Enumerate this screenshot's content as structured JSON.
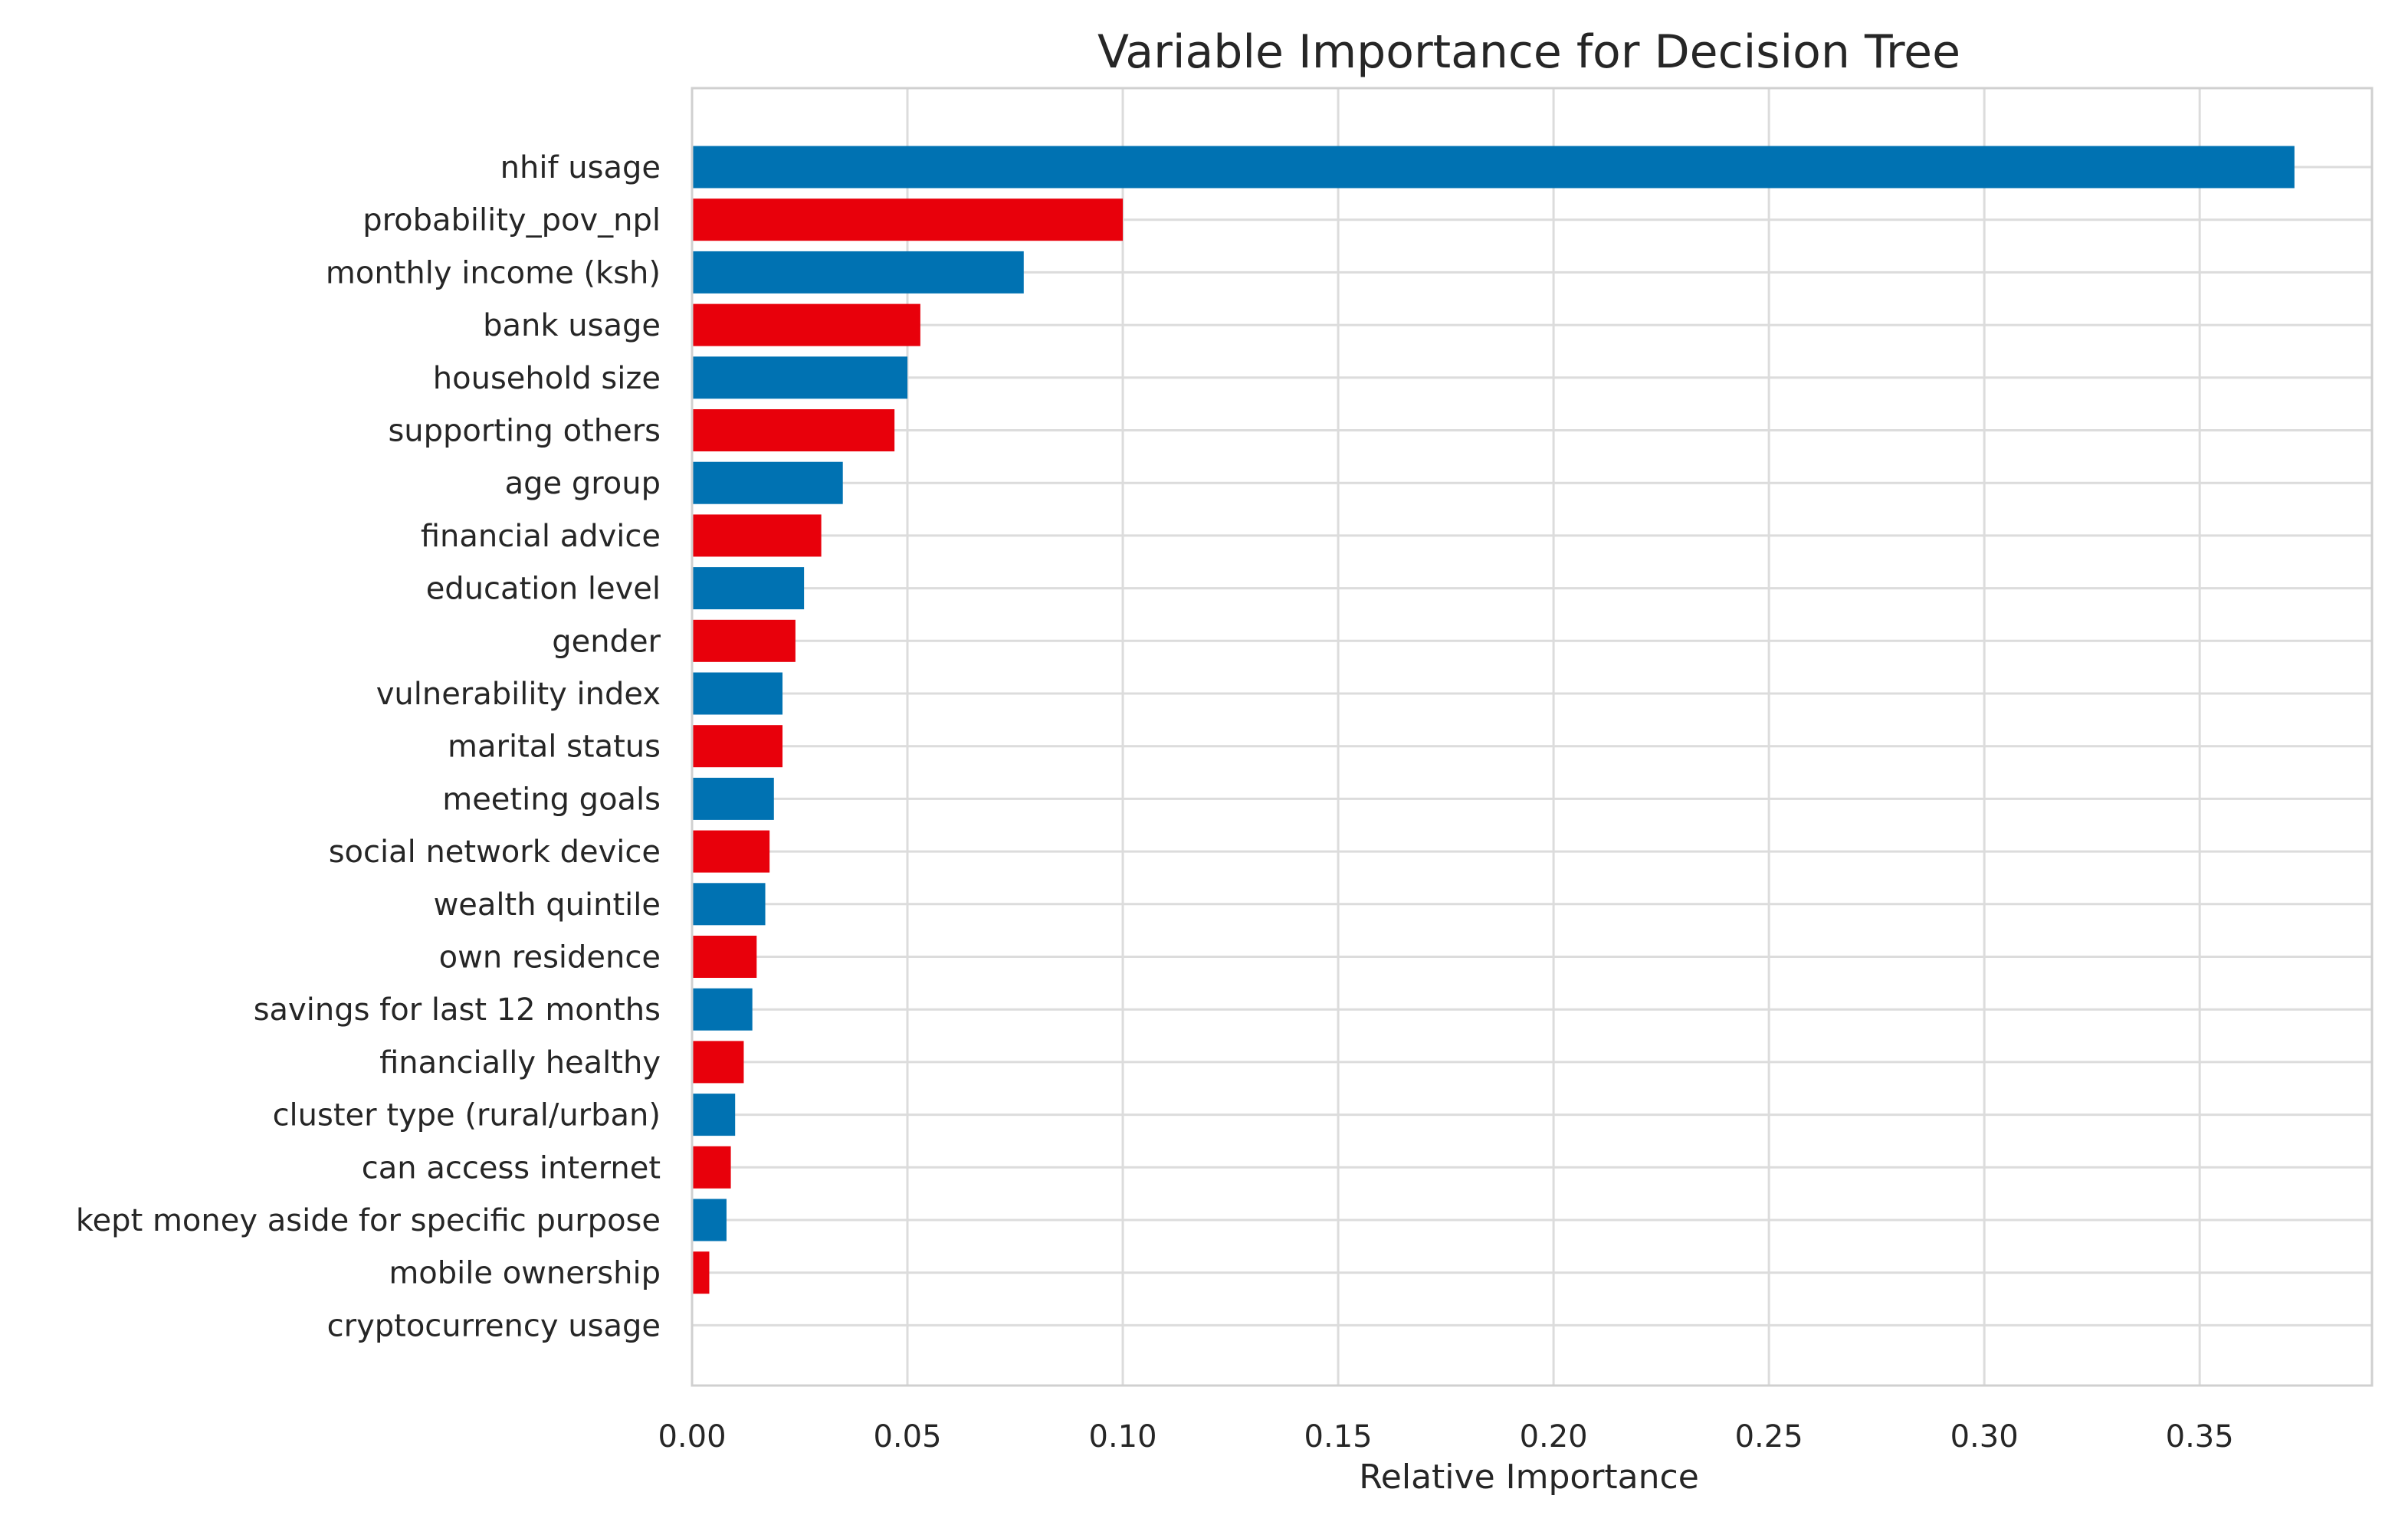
{
  "chart_data": {
    "type": "bar",
    "orientation": "horizontal",
    "title": "Variable Importance for Decision Tree",
    "xlabel": "Relative Importance",
    "ylabel": "",
    "xlim": [
      0.0,
      0.39
    ],
    "x_ticks": [
      0.0,
      0.05,
      0.1,
      0.15,
      0.2,
      0.25,
      0.3,
      0.35
    ],
    "x_tick_labels": [
      "0.00",
      "0.05",
      "0.10",
      "0.15",
      "0.20",
      "0.25",
      "0.30",
      "0.35"
    ],
    "grid": true,
    "categories": [
      "nhif usage",
      "probability_pov_npl",
      "monthly income (ksh)",
      "bank usage",
      "household size",
      "supporting others",
      "age group",
      "financial advice",
      "education level",
      "gender",
      "vulnerability index",
      "marital status",
      "meeting goals",
      "social network device",
      "wealth quintile",
      "own residence",
      "savings for last 12 months",
      "financially healthy",
      "cluster type (rural/urban)",
      "can access internet",
      "kept money aside for specific purpose",
      "mobile ownership",
      "cryptocurrency usage"
    ],
    "values": [
      0.372,
      0.1,
      0.077,
      0.053,
      0.05,
      0.047,
      0.035,
      0.03,
      0.026,
      0.024,
      0.021,
      0.021,
      0.019,
      0.018,
      0.017,
      0.015,
      0.014,
      0.012,
      0.01,
      0.009,
      0.008,
      0.004,
      0.0
    ],
    "colors": [
      "#0072b2",
      "#e8000b"
    ]
  }
}
